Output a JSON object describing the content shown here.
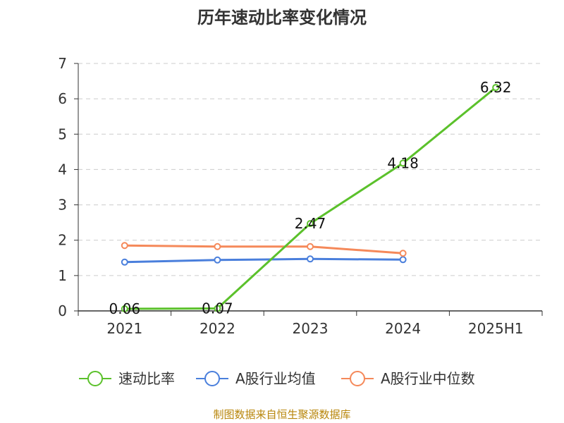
{
  "chart_data": {
    "type": "line",
    "title": "历年速动比率变化情况",
    "categories": [
      "2021",
      "2022",
      "2023",
      "2024",
      "2025H1"
    ],
    "ylim": [
      0,
      7
    ],
    "yticks": [
      "0",
      "1",
      "2",
      "3",
      "4",
      "5",
      "6",
      "7"
    ],
    "grid": true,
    "legend_position": "bottom",
    "series": [
      {
        "name": "速动比率",
        "color": "#5bc12b",
        "values": [
          0.06,
          0.07,
          2.47,
          4.18,
          6.32
        ],
        "labels": [
          "0.06",
          "0.07",
          "2.47",
          "4.18",
          "6.32"
        ]
      },
      {
        "name": "A股行业均值",
        "color": "#4a7fdc",
        "values": [
          1.38,
          1.44,
          1.47,
          1.45,
          null
        ]
      },
      {
        "name": "A股行业中位数",
        "color": "#f5895a",
        "values": [
          1.85,
          1.82,
          1.82,
          1.63,
          null
        ]
      }
    ],
    "source": "制图数据来自恒生聚源数据库"
  }
}
